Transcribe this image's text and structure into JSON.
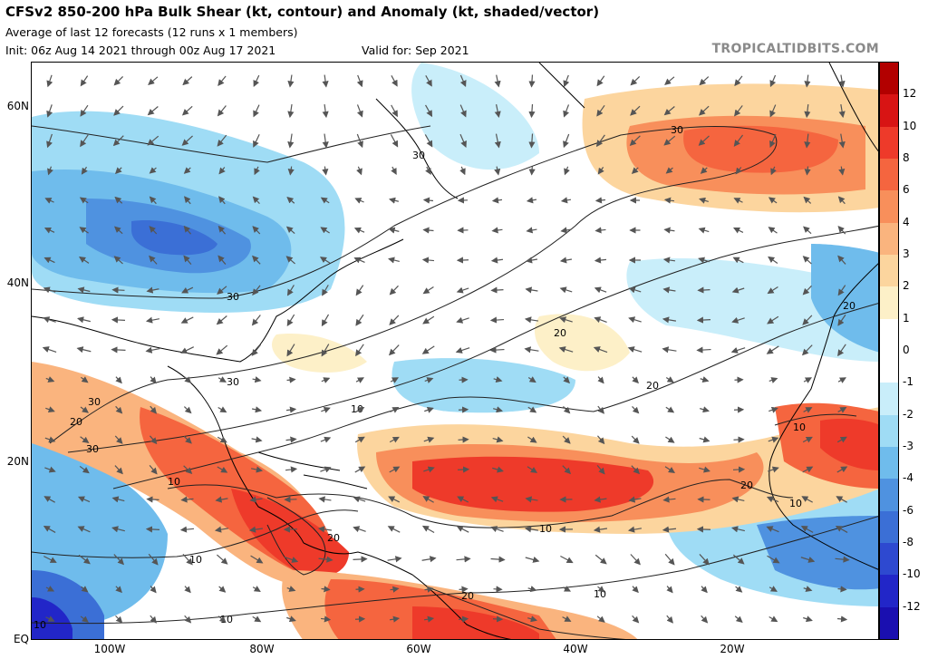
{
  "header": {
    "title": "CFSv2 850-200 hPa Bulk Shear (kt, contour) and Anomaly (kt, shaded/vector)",
    "subtitle": "Average of last 12 forecasts (12 runs x 1 members)",
    "init": "Init: 06z Aug 14 2021 through 00z Aug 17 2021",
    "valid": "Valid for: Sep 2021",
    "brand": "TROPICALTIDBITS.COM"
  },
  "axes": {
    "lat_labels": [
      "60N",
      "40N",
      "20N",
      "EQ"
    ],
    "lon_labels": [
      "100W",
      "80W",
      "60W",
      "40W",
      "20W"
    ]
  },
  "contour_labels": [
    "30",
    "30",
    "30",
    "30",
    "30",
    "20",
    "20",
    "20",
    "20",
    "20",
    "20",
    "10",
    "10",
    "10",
    "10",
    "10",
    "10",
    "10",
    "10",
    "10",
    "20",
    "30",
    "20"
  ],
  "colorbar": {
    "labels": [
      "12",
      "10",
      "8",
      "6",
      "4",
      "3",
      "2",
      "1",
      "0",
      "-1",
      "-2",
      "-3",
      "-4",
      "-6",
      "-8",
      "-10",
      "-12"
    ],
    "colors": [
      "#b20000",
      "#d81414",
      "#ee3a2a",
      "#f5653f",
      "#f88f5b",
      "#fab47e",
      "#fcd59e",
      "#fdf0c8",
      "#ffffff",
      "#ffffff",
      "#c9eefa",
      "#9fdcf5",
      "#6fbcec",
      "#4f92e0",
      "#3b6fd6",
      "#2e49d0",
      "#2226c8",
      "#1a0fb0"
    ]
  }
}
